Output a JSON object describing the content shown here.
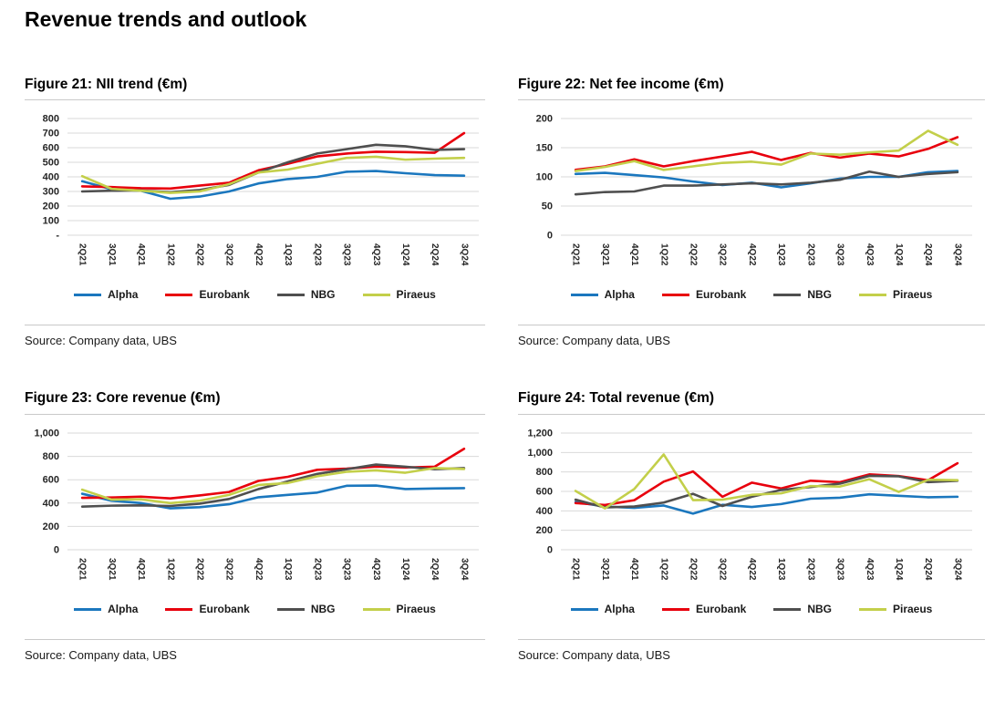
{
  "page_title": "Revenue trends and outlook",
  "source_label": "Source: Company data, UBS",
  "legend": [
    {
      "label": "Alpha",
      "color": "#1b77be"
    },
    {
      "label": "Eurobank",
      "color": "#e8000d"
    },
    {
      "label": "NBG",
      "color": "#4f4f4f"
    },
    {
      "label": "Piraeus",
      "color": "#c3cf4a"
    }
  ],
  "chart_data": [
    {
      "type": "line",
      "title": "Figure 21: NII trend (€m)",
      "ylim": [
        0,
        800
      ],
      "grid": true,
      "legend_position": "bottom",
      "yticks": [
        {
          "value": 0,
          "label": "-"
        },
        {
          "value": 100,
          "label": "100"
        },
        {
          "value": 200,
          "label": "200"
        },
        {
          "value": 300,
          "label": "300"
        },
        {
          "value": 400,
          "label": "400"
        },
        {
          "value": 500,
          "label": "500"
        },
        {
          "value": 600,
          "label": "600"
        },
        {
          "value": 700,
          "label": "700"
        },
        {
          "value": 800,
          "label": "800"
        }
      ],
      "categories": [
        "2Q21",
        "3Q21",
        "4Q21",
        "1Q22",
        "2Q22",
        "3Q22",
        "4Q22",
        "1Q23",
        "2Q23",
        "3Q23",
        "4Q23",
        "1Q24",
        "2Q24",
        "3Q24"
      ],
      "series": [
        {
          "name": "Alpha",
          "values": [
            370,
            315,
            305,
            250,
            265,
            300,
            355,
            385,
            400,
            435,
            440,
            425,
            412,
            408
          ]
        },
        {
          "name": "Eurobank",
          "values": [
            335,
            330,
            322,
            320,
            340,
            360,
            445,
            490,
            540,
            560,
            572,
            570,
            565,
            700
          ]
        },
        {
          "name": "NBG",
          "values": [
            300,
            305,
            307,
            295,
            310,
            345,
            430,
            500,
            560,
            590,
            620,
            610,
            585,
            590
          ]
        },
        {
          "name": "Piraeus",
          "values": [
            405,
            318,
            305,
            290,
            300,
            350,
            430,
            450,
            490,
            530,
            538,
            518,
            525,
            530
          ]
        }
      ]
    },
    {
      "type": "line",
      "title": "Figure 22: Net fee income (€m)",
      "ylim": [
        0,
        200
      ],
      "grid": true,
      "legend_position": "bottom",
      "yticks": [
        {
          "value": 0,
          "label": "0"
        },
        {
          "value": 50,
          "label": "50"
        },
        {
          "value": 100,
          "label": "100"
        },
        {
          "value": 150,
          "label": "150"
        },
        {
          "value": 200,
          "label": "200"
        }
      ],
      "categories": [
        "2Q21",
        "3Q21",
        "4Q21",
        "1Q22",
        "2Q22",
        "3Q22",
        "4Q22",
        "1Q23",
        "2Q23",
        "3Q23",
        "4Q23",
        "1Q24",
        "2Q24",
        "3Q24"
      ],
      "series": [
        {
          "name": "Alpha",
          "values": [
            105,
            107,
            103,
            99,
            92,
            86,
            90,
            82,
            89,
            97,
            100,
            100,
            108,
            110
          ]
        },
        {
          "name": "Eurobank",
          "values": [
            112,
            118,
            130,
            118,
            127,
            135,
            143,
            129,
            141,
            133,
            140,
            135,
            148,
            168
          ]
        },
        {
          "name": "NBG",
          "values": [
            70,
            74,
            75,
            85,
            85,
            87,
            89,
            87,
            90,
            95,
            109,
            100,
            105,
            108
          ]
        },
        {
          "name": "Piraeus",
          "values": [
            110,
            117,
            127,
            112,
            118,
            124,
            126,
            121,
            140,
            138,
            142,
            145,
            179,
            155
          ]
        }
      ]
    },
    {
      "type": "line",
      "title": "Figure 23: Core revenue (€m)",
      "ylim": [
        0,
        1000
      ],
      "grid": true,
      "legend_position": "bottom",
      "yticks": [
        {
          "value": 0,
          "label": "0"
        },
        {
          "value": 200,
          "label": "200"
        },
        {
          "value": 400,
          "label": "400"
        },
        {
          "value": 600,
          "label": "600"
        },
        {
          "value": 800,
          "label": "800"
        },
        {
          "value": 1000,
          "label": "1,000"
        }
      ],
      "categories": [
        "2Q21",
        "3Q21",
        "4Q21",
        "1Q22",
        "2Q22",
        "3Q22",
        "4Q22",
        "1Q23",
        "2Q23",
        "3Q23",
        "4Q23",
        "1Q24",
        "2Q24",
        "3Q24"
      ],
      "series": [
        {
          "name": "Alpha",
          "values": [
            480,
            420,
            400,
            355,
            365,
            390,
            450,
            470,
            490,
            548,
            550,
            520,
            525,
            528
          ]
        },
        {
          "name": "Eurobank",
          "values": [
            445,
            448,
            455,
            440,
            465,
            495,
            590,
            625,
            685,
            695,
            712,
            705,
            712,
            865
          ]
        },
        {
          "name": "NBG",
          "values": [
            370,
            378,
            380,
            375,
            395,
            435,
            520,
            585,
            650,
            690,
            730,
            712,
            690,
            700
          ]
        },
        {
          "name": "Piraeus",
          "values": [
            515,
            430,
            432,
            400,
            420,
            470,
            555,
            572,
            630,
            668,
            680,
            660,
            700,
            692
          ]
        }
      ]
    },
    {
      "type": "line",
      "title": "Figure 24: Total revenue (€m)",
      "ylim": [
        0,
        1200
      ],
      "grid": true,
      "legend_position": "bottom",
      "yticks": [
        {
          "value": 0,
          "label": "0"
        },
        {
          "value": 200,
          "label": "200"
        },
        {
          "value": 400,
          "label": "400"
        },
        {
          "value": 600,
          "label": "600"
        },
        {
          "value": 800,
          "label": "800"
        },
        {
          "value": 1000,
          "label": "1,000"
        },
        {
          "value": 1200,
          "label": "1,200"
        }
      ],
      "categories": [
        "2Q21",
        "3Q21",
        "4Q21",
        "1Q22",
        "2Q22",
        "3Q22",
        "4Q22",
        "1Q23",
        "2Q23",
        "3Q23",
        "4Q23",
        "1Q24",
        "2Q24",
        "3Q24"
      ],
      "series": [
        {
          "name": "Alpha",
          "values": [
            490,
            445,
            430,
            455,
            372,
            462,
            440,
            470,
            525,
            535,
            570,
            555,
            540,
            545
          ]
        },
        {
          "name": "Eurobank",
          "values": [
            480,
            460,
            510,
            700,
            805,
            545,
            690,
            630,
            710,
            695,
            775,
            758,
            715,
            890
          ]
        },
        {
          "name": "NBG",
          "values": [
            515,
            435,
            445,
            485,
            575,
            450,
            545,
            615,
            645,
            680,
            760,
            755,
            695,
            710
          ]
        },
        {
          "name": "Piraeus",
          "values": [
            605,
            425,
            625,
            980,
            510,
            515,
            565,
            580,
            655,
            650,
            725,
            595,
            720,
            715
          ]
        }
      ]
    }
  ]
}
